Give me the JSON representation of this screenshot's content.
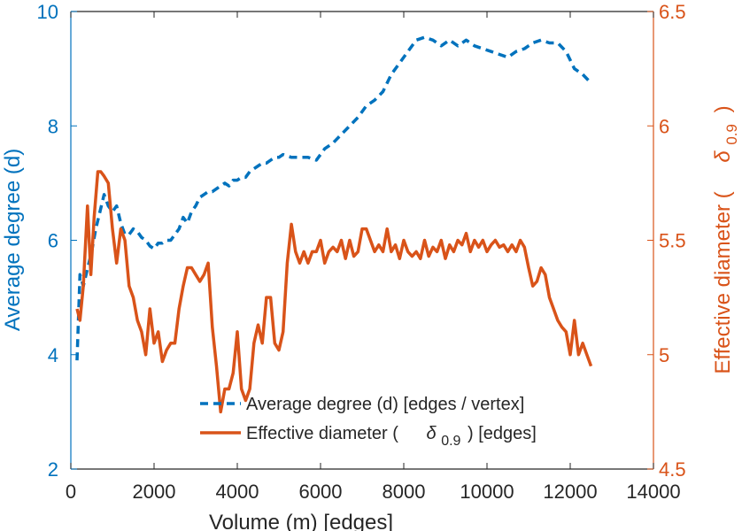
{
  "chart_data": {
    "type": "line",
    "xlabel": "Volume (m) [edges]",
    "ylabel_left": "Average degree (d)",
    "ylabel_right_prefix": "Effective diameter (",
    "ylabel_right_symbol": "δ",
    "ylabel_right_sub": "0.9",
    "ylabel_right_suffix": ")",
    "xlim": [
      0,
      14000
    ],
    "ylim_left": [
      2,
      10
    ],
    "ylim_right": [
      4.5,
      6.5
    ],
    "xticks": [
      "0",
      "2000",
      "4000",
      "6000",
      "8000",
      "10000",
      "12000",
      "14000"
    ],
    "xtick_values": [
      0,
      2000,
      4000,
      6000,
      8000,
      10000,
      12000,
      14000
    ],
    "yticks_left": [
      "2",
      "4",
      "6",
      "8",
      "10"
    ],
    "ytick_values_left": [
      2,
      4,
      6,
      8,
      10
    ],
    "yticks_right": [
      "4.5",
      "5",
      "5.5",
      "6",
      "6.5"
    ],
    "ytick_values_right": [
      4.5,
      5.0,
      5.5,
      6.0,
      6.5
    ],
    "colors": {
      "left": "#0072BD",
      "right": "#D95319",
      "axis": "#262626"
    },
    "series": [
      {
        "name": "Average degree (d) [edges / vertex]",
        "axis": "left",
        "style": "dashed",
        "x": [
          150,
          220,
          300,
          400,
          500,
          600,
          700,
          800,
          900,
          1000,
          1100,
          1200,
          1300,
          1400,
          1500,
          1600,
          1700,
          1800,
          1900,
          2000,
          2100,
          2200,
          2300,
          2400,
          2500,
          2600,
          2700,
          2800,
          2900,
          3000,
          3100,
          3200,
          3300,
          3400,
          3500,
          3600,
          3700,
          3800,
          3900,
          4000,
          4100,
          4200,
          4300,
          4400,
          4500,
          4600,
          4700,
          4800,
          4900,
          5000,
          5100,
          5300,
          5500,
          5700,
          5900,
          6100,
          6300,
          6500,
          6700,
          6900,
          7100,
          7300,
          7500,
          7700,
          7900,
          8100,
          8300,
          8500,
          8700,
          8900,
          9100,
          9300,
          9500,
          9700,
          9900,
          10100,
          10300,
          10500,
          10700,
          10900,
          11100,
          11300,
          11500,
          11700,
          11900,
          12100,
          12300,
          12500
        ],
        "values": [
          3.9,
          5.4,
          5.2,
          5.5,
          5.8,
          6.2,
          6.5,
          6.8,
          6.6,
          6.5,
          6.6,
          6.3,
          6.1,
          6.1,
          6.2,
          6.15,
          6.05,
          6.0,
          5.9,
          5.85,
          5.95,
          5.95,
          6.0,
          6.0,
          6.1,
          6.2,
          6.4,
          6.3,
          6.5,
          6.6,
          6.75,
          6.8,
          6.85,
          6.85,
          6.9,
          6.95,
          7.0,
          6.95,
          7.05,
          7.05,
          7.1,
          7.1,
          7.2,
          7.25,
          7.3,
          7.35,
          7.35,
          7.4,
          7.45,
          7.45,
          7.5,
          7.45,
          7.45,
          7.45,
          7.4,
          7.6,
          7.7,
          7.85,
          8.0,
          8.15,
          8.35,
          8.45,
          8.6,
          8.9,
          9.1,
          9.3,
          9.5,
          9.55,
          9.5,
          9.4,
          9.5,
          9.4,
          9.5,
          9.4,
          9.35,
          9.3,
          9.25,
          9.2,
          9.3,
          9.35,
          9.45,
          9.5,
          9.45,
          9.45,
          9.3,
          9.0,
          8.9,
          8.75
        ]
      },
      {
        "name": "Effective diameter (δ0.9) [edges]",
        "axis": "right",
        "style": "solid",
        "x": [
          150,
          220,
          300,
          400,
          480,
          560,
          650,
          720,
          800,
          900,
          1000,
          1100,
          1200,
          1300,
          1400,
          1500,
          1600,
          1700,
          1800,
          1900,
          2000,
          2100,
          2200,
          2300,
          2400,
          2500,
          2600,
          2700,
          2800,
          2900,
          3000,
          3100,
          3200,
          3300,
          3400,
          3500,
          3600,
          3700,
          3800,
          3900,
          4000,
          4100,
          4200,
          4300,
          4400,
          4500,
          4600,
          4700,
          4800,
          4900,
          5000,
          5100,
          5200,
          5300,
          5400,
          5500,
          5600,
          5700,
          5800,
          5900,
          6000,
          6100,
          6200,
          6300,
          6400,
          6500,
          6600,
          6700,
          6800,
          6900,
          7000,
          7100,
          7200,
          7300,
          7400,
          7500,
          7600,
          7700,
          7800,
          7900,
          8000,
          8100,
          8200,
          8300,
          8400,
          8500,
          8600,
          8700,
          8800,
          8900,
          9000,
          9100,
          9200,
          9300,
          9400,
          9500,
          9600,
          9700,
          9800,
          9900,
          10000,
          10100,
          10200,
          10300,
          10400,
          10500,
          10600,
          10700,
          10800,
          10900,
          11000,
          11100,
          11200,
          11300,
          11400,
          11500,
          11600,
          11700,
          11800,
          11900,
          12000,
          12100,
          12200,
          12300,
          12400,
          12500
        ],
        "values": [
          5.2,
          5.15,
          5.3,
          5.65,
          5.35,
          5.6,
          5.8,
          5.8,
          5.78,
          5.75,
          5.55,
          5.4,
          5.55,
          5.5,
          5.3,
          5.25,
          5.15,
          5.1,
          5.0,
          5.2,
          5.05,
          5.1,
          4.97,
          5.02,
          5.05,
          5.05,
          5.2,
          5.3,
          5.38,
          5.38,
          5.35,
          5.32,
          5.35,
          5.4,
          5.12,
          4.95,
          4.75,
          4.85,
          4.85,
          4.92,
          5.1,
          4.85,
          4.8,
          4.85,
          5.05,
          5.13,
          5.05,
          5.25,
          5.25,
          5.05,
          5.02,
          5.1,
          5.4,
          5.57,
          5.45,
          5.4,
          5.45,
          5.4,
          5.45,
          5.45,
          5.5,
          5.4,
          5.45,
          5.47,
          5.45,
          5.5,
          5.42,
          5.5,
          5.43,
          5.45,
          5.55,
          5.55,
          5.5,
          5.45,
          5.48,
          5.45,
          5.55,
          5.45,
          5.48,
          5.42,
          5.5,
          5.45,
          5.43,
          5.45,
          5.42,
          5.5,
          5.43,
          5.47,
          5.45,
          5.5,
          5.42,
          5.48,
          5.45,
          5.5,
          5.48,
          5.53,
          5.45,
          5.5,
          5.47,
          5.5,
          5.45,
          5.48,
          5.5,
          5.47,
          5.48,
          5.45,
          5.48,
          5.45,
          5.5,
          5.47,
          5.38,
          5.3,
          5.32,
          5.38,
          5.35,
          5.25,
          5.2,
          5.15,
          5.12,
          5.1,
          5.0,
          5.15,
          5.0,
          5.05,
          5.0,
          4.95
        ]
      }
    ],
    "legend": {
      "position": "bottom-center",
      "entries": [
        {
          "prefix": "Average degree (d) [edges / vertex]",
          "symbol": "",
          "sub": "",
          "suffix": ""
        },
        {
          "prefix": "Effective diameter (",
          "symbol": "δ",
          "sub": "0.9",
          "suffix": ") [edges]"
        }
      ]
    }
  }
}
